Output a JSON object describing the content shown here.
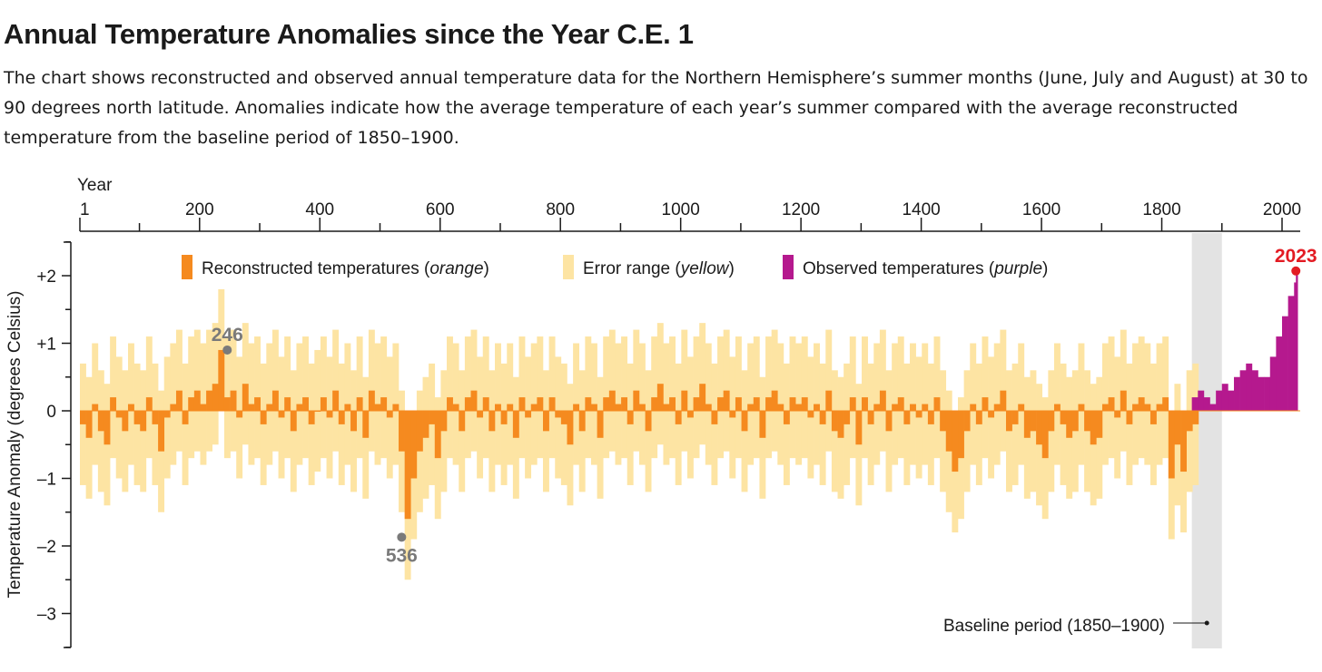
{
  "title": "Annual Temperature Anomalies since the Year C.E. 1",
  "subtitle": "The chart shows reconstructed and observed annual temperature data for the Northern Hemisphere’s summer months (June, July and August) at 30 to 90 degrees north latitude. Anomalies indicate how the average temperature of each year’s summer compared with the average reconstructed temperature from the baseline period of 1850–1900.",
  "chart_data": {
    "type": "bar",
    "title": "Annual Temperature Anomalies since the Year C.E. 1",
    "xlabel": "Year",
    "ylabel": "Temperature Anomaly (degrees Celsius)",
    "xlim": [
      1,
      2023
    ],
    "ylim": [
      -3.5,
      2.5
    ],
    "x_ticks": [
      {
        "value": 1,
        "label": "1"
      },
      {
        "value": 200,
        "label": "200"
      },
      {
        "value": 400,
        "label": "400"
      },
      {
        "value": 600,
        "label": "600"
      },
      {
        "value": 800,
        "label": "800"
      },
      {
        "value": 1000,
        "label": "1000"
      },
      {
        "value": 1200,
        "label": "1200"
      },
      {
        "value": 1400,
        "label": "1400"
      },
      {
        "value": 1600,
        "label": "1600"
      },
      {
        "value": 1800,
        "label": "1800"
      },
      {
        "value": 2000,
        "label": "2000"
      }
    ],
    "y_ticks": [
      {
        "value": 2,
        "label": "+2"
      },
      {
        "value": 1,
        "label": "+1"
      },
      {
        "value": 0,
        "label": "0"
      },
      {
        "value": -1,
        "label": "–1"
      },
      {
        "value": -2,
        "label": "–2"
      },
      {
        "value": -3,
        "label": "–3"
      }
    ],
    "legend": {
      "placement": "top",
      "items": [
        {
          "label": "Reconstructed temperatures (",
          "italic": "orange",
          "close": ")",
          "color": "#f58a1f"
        },
        {
          "label": "Error range (",
          "italic": "yellow",
          "close": ")",
          "color": "#fde4a3"
        },
        {
          "label": "Observed temperatures (",
          "italic": "purple",
          "close": ")",
          "color": "#b5198e"
        }
      ]
    },
    "series": [
      {
        "name": "Reconstructed temperatures",
        "color": "#f58a1f",
        "x_start": 1,
        "x_step": 10,
        "values": [
          -0.2,
          -0.4,
          0.1,
          -0.3,
          -0.5,
          0.2,
          -0.1,
          -0.3,
          0.1,
          -0.2,
          -0.3,
          0.2,
          -0.2,
          -0.6,
          -0.1,
          0.1,
          0.3,
          -0.2,
          0.2,
          0.3,
          0.1,
          0.3,
          0.4,
          0.9,
          0.2,
          0.3,
          -0.1,
          0.4,
          0.1,
          0.2,
          -0.2,
          0.1,
          0.3,
          -0.1,
          0.2,
          -0.3,
          0.1,
          0.2,
          -0.2,
          0.0,
          0.2,
          -0.1,
          0.3,
          -0.2,
          0.1,
          -0.3,
          0.2,
          -0.4,
          0.3,
          0.1,
          0.2,
          -0.1,
          0.1,
          -0.6,
          -1.6,
          -1.0,
          -0.6,
          -0.4,
          -0.2,
          -0.7,
          -0.3,
          0.2,
          0.1,
          -0.3,
          0.2,
          0.3,
          -0.1,
          0.2,
          -0.3,
          0.1,
          -0.2,
          0.1,
          -0.4,
          0.2,
          -0.1,
          0.1,
          0.2,
          -0.3,
          0.2,
          -0.1,
          -0.2,
          -0.5,
          0.1,
          -0.3,
          0.2,
          0.1,
          -0.4,
          0.2,
          0.3,
          0.1,
          0.2,
          -0.2,
          0.3,
          0.1,
          -0.3,
          0.2,
          0.4,
          0.1,
          0.2,
          -0.2,
          0.3,
          -0.1,
          0.2,
          0.4,
          0.1,
          -0.2,
          0.2,
          0.3,
          -0.1,
          0.2,
          -0.3,
          0.1,
          0.2,
          -0.4,
          0.2,
          0.3,
          0.1,
          -0.2,
          0.2,
          0.1,
          0.2,
          -0.1,
          0.1,
          -0.2,
          0.3,
          -0.3,
          -0.4,
          -0.2,
          0.2,
          -0.5,
          0.2,
          -0.2,
          0.1,
          0.3,
          -0.3,
          0.1,
          0.2,
          -0.2,
          0.1,
          -0.1,
          0.1,
          -0.2,
          0.2,
          -0.3,
          -0.6,
          -0.9,
          -0.7,
          -0.3,
          0.1,
          -0.2,
          0.2,
          -0.1,
          0.1,
          0.3,
          -0.3,
          -0.2,
          0.1,
          -0.4,
          -0.3,
          -0.5,
          -0.7,
          -0.3,
          0.1,
          -0.2,
          -0.4,
          -0.3,
          0.1,
          -0.3,
          -0.5,
          -0.4,
          0.1,
          0.2,
          -0.1,
          0.3,
          -0.2,
          0.1,
          0.2,
          0.1,
          -0.2,
          0.1,
          0.2,
          -1.0,
          -0.5,
          -0.9,
          -0.3,
          -0.2
        ],
        "error_range_halfwidth": 0.9,
        "error_color": "#fde4a3"
      },
      {
        "name": "Observed temperatures",
        "color": "#b5198e",
        "x": [
          1850,
          1860,
          1870,
          1880,
          1890,
          1900,
          1910,
          1920,
          1930,
          1940,
          1950,
          1960,
          1970,
          1980,
          1990,
          2000,
          2010,
          2020,
          2023
        ],
        "values": [
          0.2,
          0.3,
          0.2,
          0.1,
          0.3,
          0.4,
          0.3,
          0.5,
          0.6,
          0.7,
          0.6,
          0.5,
          0.5,
          0.8,
          1.1,
          1.4,
          1.7,
          1.9,
          2.07
        ]
      }
    ],
    "annotations": [
      {
        "year": 246,
        "value": 0.9,
        "label": "246",
        "color": "#7a7a7a",
        "position": "above"
      },
      {
        "year": 536,
        "value": -1.87,
        "label": "536",
        "color": "#7a7a7a",
        "position": "below"
      },
      {
        "year": 2023,
        "value": 2.07,
        "label": "2023",
        "color": "#e31b23",
        "position": "above"
      }
    ],
    "baseline": {
      "start": 1850,
      "end": 1900,
      "label": "Baseline period (1850–1900)",
      "color": "#e3e3e3"
    }
  }
}
